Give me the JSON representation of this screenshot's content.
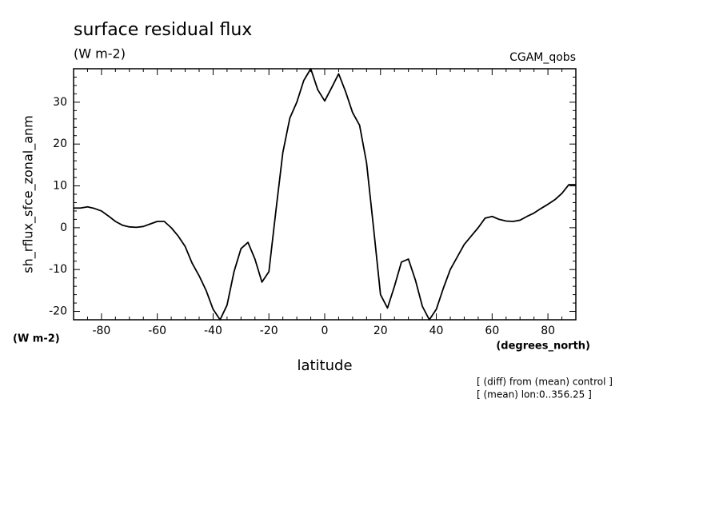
{
  "chart_data": {
    "type": "line",
    "title": "surface residual flux",
    "subtitle": "(W m-2)",
    "annotation_right": "CGAM_qobs",
    "y_label": "sh_rflux_sfce_zonal_anm",
    "y_units": "(W m-2)",
    "x_label": "latitude",
    "x_units": "(degrees_north)",
    "notes": [
      "[ (diff) from (mean) control ]",
      "[ (mean) lon:0..356.25 ]"
    ],
    "xlim": [
      -90,
      90
    ],
    "ylim": [
      -22,
      38
    ],
    "xticks": [
      -80,
      -60,
      -40,
      -20,
      0,
      20,
      40,
      60,
      80
    ],
    "yticks": [
      -20,
      -10,
      0,
      10,
      20,
      30
    ],
    "xticks_minor": [
      -90,
      -85,
      -75,
      -70,
      -65,
      -55,
      -50,
      -45,
      -35,
      -30,
      -25,
      -15,
      -10,
      -5,
      5,
      10,
      15,
      25,
      30,
      35,
      45,
      50,
      55,
      65,
      70,
      75,
      85,
      90
    ],
    "yticks_minor": [
      -22,
      -18,
      -16,
      -14,
      -12,
      -8,
      -6,
      -4,
      -2,
      2,
      4,
      6,
      8,
      12,
      14,
      16,
      18,
      22,
      24,
      26,
      28,
      32,
      34,
      36,
      38
    ],
    "x": [
      -90,
      -87.5,
      -85,
      -82.5,
      -80,
      -77.5,
      -75,
      -72.5,
      -70,
      -67.5,
      -65,
      -62.5,
      -60,
      -57.5,
      -55,
      -52.5,
      -50,
      -47.5,
      -45,
      -42.5,
      -40,
      -37.5,
      -35,
      -32.5,
      -30,
      -27.5,
      -25,
      -22.5,
      -20,
      -17.5,
      -15,
      -12.5,
      -10,
      -7.5,
      -5,
      -2.5,
      0,
      2.5,
      5,
      7.5,
      10,
      12.5,
      15,
      17.5,
      20,
      22.5,
      25,
      27.5,
      30,
      32.5,
      35,
      37.5,
      40,
      42.5,
      45,
      47.5,
      50,
      52.5,
      55,
      57.5,
      60,
      62.5,
      65,
      67.5,
      70,
      72.5,
      75,
      77.5,
      80,
      82.5,
      85,
      87.5,
      90
    ],
    "series": [
      {
        "color": "#000000",
        "values": [
          4.7,
          4.7,
          5.0,
          4.6,
          4.0,
          2.8,
          1.5,
          0.6,
          0.2,
          0.1,
          0.3,
          0.9,
          1.5,
          1.5,
          0,
          -2,
          -4.5,
          -8.5,
          -11.5,
          -15,
          -19.5,
          -22,
          -18.5,
          -10.5,
          -5,
          -3.5,
          -7.5,
          -13,
          -10.5,
          4,
          18,
          26.2,
          30,
          35.2,
          38,
          33,
          30.3,
          33.5,
          36.8,
          32.5,
          27.5,
          24.5,
          15.5,
          0,
          -16,
          -19.2,
          -14,
          -8.2,
          -7.5,
          -12.5,
          -18.8,
          -22,
          -19.5,
          -14.5,
          -10,
          -7,
          -4,
          -2,
          0,
          2.3,
          2.7,
          2,
          1.6,
          1.5,
          1.8,
          2.7,
          3.5,
          4.6,
          5.6,
          6.7,
          8.2,
          10.3,
          10.3
        ]
      }
    ]
  }
}
